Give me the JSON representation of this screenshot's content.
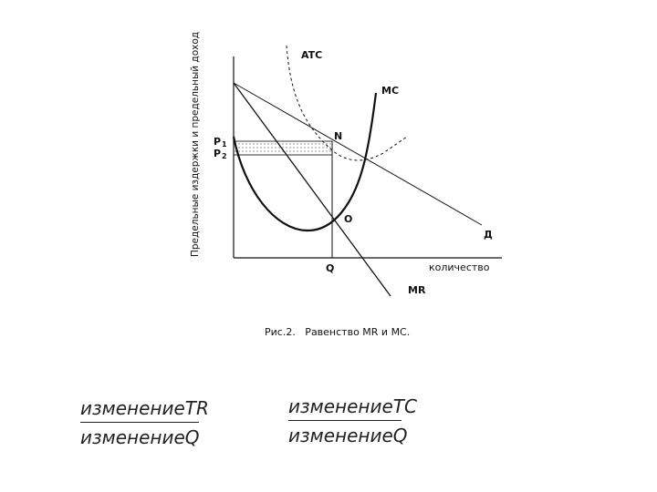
{
  "diagram": {
    "y_axis_label": "Предельные издержки и предельный доход",
    "x_axis_label": "количество",
    "curves": {
      "atc": "ATC",
      "mc": "MC",
      "demand": "Д",
      "mr": "MR"
    },
    "points": {
      "n": "N",
      "o": "O",
      "q": "Q",
      "p1": "P",
      "p1_sub": "1",
      "p2": "P",
      "p2_sub": "2"
    },
    "caption": "Рис.2.   Равенство MR и MC."
  },
  "formulas": {
    "left": {
      "numerator": "изменениеTR",
      "denominator": "изменениеQ"
    },
    "right": {
      "numerator": "изменениеTC",
      "denominator": "изменениеQ"
    }
  }
}
